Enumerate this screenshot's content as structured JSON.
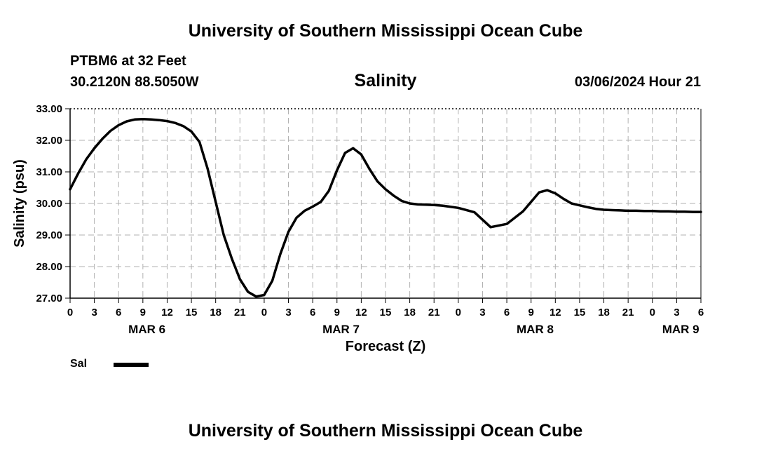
{
  "header": {
    "title": "University of Southern Mississippi Ocean Cube",
    "station": "PTBM6 at 32 Feet",
    "coordinates": "30.2120N  88.5050W",
    "subtitle": "Salinity",
    "datetime": "03/06/2024 Hour 21"
  },
  "footer": {
    "title": "University of Southern Mississippi Ocean Cube"
  },
  "legend": {
    "label": "Sal",
    "color": "#000000"
  },
  "chart_data": {
    "type": "line",
    "title": "Salinity",
    "xlabel": "Forecast (Z)",
    "ylabel": "Salinity (psu)",
    "xlim": [
      0,
      78
    ],
    "ylim": [
      27.0,
      33.0
    ],
    "grid": true,
    "x_tick_labels": [
      "0",
      "3",
      "6",
      "9",
      "12",
      "15",
      "18",
      "21",
      "0",
      "3",
      "6",
      "9",
      "12",
      "15",
      "18",
      "21",
      "0",
      "3",
      "6",
      "9",
      "12",
      "15",
      "18",
      "21",
      "0",
      "3",
      "6"
    ],
    "date_labels": [
      {
        "hour": 9.5,
        "label": "MAR 6"
      },
      {
        "hour": 33.5,
        "label": "MAR 7"
      },
      {
        "hour": 57.5,
        "label": "MAR 8"
      },
      {
        "hour": 75.5,
        "label": "MAR 9"
      }
    ],
    "y_ticks": [
      27.0,
      28.0,
      29.0,
      30.0,
      31.0,
      32.0,
      33.0
    ],
    "series": [
      {
        "name": "Sal",
        "x": [
          0,
          1,
          2,
          3,
          4,
          5,
          6,
          7,
          8,
          9,
          10,
          11,
          12,
          13,
          14,
          15,
          16,
          17,
          18,
          19,
          20,
          21,
          22,
          23,
          24,
          25,
          26,
          27,
          28,
          29,
          30,
          31,
          32,
          33,
          34,
          35,
          36,
          37,
          38,
          39,
          40,
          41,
          42,
          43,
          44,
          45,
          46,
          48,
          50,
          52,
          54,
          56,
          57,
          58,
          59,
          60,
          61,
          62,
          63,
          64,
          65,
          66,
          67,
          68,
          69,
          70,
          71,
          72,
          73,
          74,
          75,
          76,
          77,
          78
        ],
        "values": [
          30.45,
          30.95,
          31.4,
          31.75,
          32.05,
          32.3,
          32.48,
          32.6,
          32.66,
          32.67,
          32.66,
          32.64,
          32.61,
          32.55,
          32.45,
          32.28,
          31.95,
          31.1,
          30.05,
          29.0,
          28.25,
          27.6,
          27.2,
          27.05,
          27.1,
          27.55,
          28.4,
          29.1,
          29.55,
          29.77,
          29.9,
          30.05,
          30.4,
          31.05,
          31.6,
          31.75,
          31.55,
          31.1,
          30.7,
          30.45,
          30.25,
          30.08,
          30.0,
          29.97,
          29.96,
          29.95,
          29.93,
          29.86,
          29.72,
          29.25,
          29.35,
          29.75,
          30.05,
          30.35,
          30.42,
          30.32,
          30.15,
          30.0,
          29.94,
          29.88,
          29.83,
          29.8,
          29.79,
          29.78,
          29.77,
          29.77,
          29.76,
          29.76,
          29.75,
          29.75,
          29.74,
          29.74,
          29.73,
          29.73
        ]
      }
    ]
  }
}
